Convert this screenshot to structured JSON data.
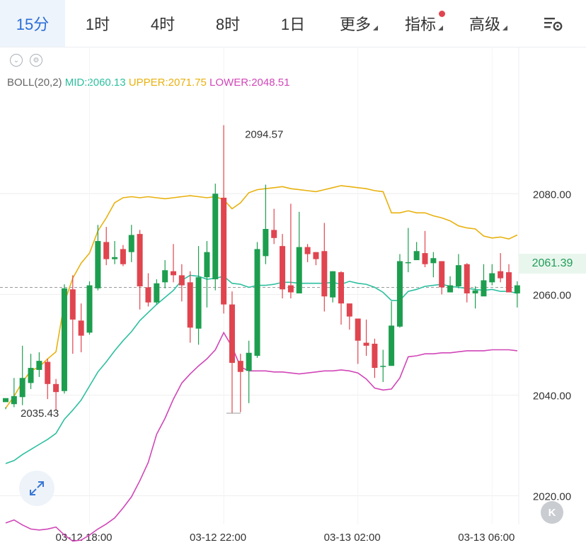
{
  "toolbar": {
    "tabs": [
      {
        "label": "15分",
        "active": true
      },
      {
        "label": "1时"
      },
      {
        "label": "4时"
      },
      {
        "label": "8时"
      },
      {
        "label": "1日"
      },
      {
        "label": "更多",
        "dropdown": true
      },
      {
        "label": "指标",
        "dropdown": true,
        "dot": true
      },
      {
        "label": "高级",
        "dropdown": true
      }
    ],
    "settings_icon": "chart-settings-icon"
  },
  "indicator": {
    "name": "BOLL(20,2)",
    "mid": "MID:2060.13",
    "upper": "UPPER:2071.75",
    "lower": "LOWER:2048.51",
    "colors": {
      "mid": "#2dbfa0",
      "upper": "#e8b10e",
      "lower": "#d146b8"
    }
  },
  "colors": {
    "up": "#1d9e4f",
    "down": "#e0454f",
    "grid": "#eeeeee"
  },
  "chart_data": {
    "type": "candlestick",
    "y_ticks": [
      "2080.00",
      "2060.00",
      "2040.00",
      "2020.00"
    ],
    "ylim": [
      2014.3,
      2105.8
    ],
    "x_ticks": [
      "03-12 18:00",
      "03-12 22:00",
      "03-13 02:00",
      "03-13 06:00"
    ],
    "max_label": "2094.57",
    "min_label": "2035.43",
    "last_price": "2061.39",
    "candles": [
      [
        2038.6,
        2039.4,
        2037.6,
        2037.2
      ],
      [
        2038.2,
        2039.8,
        2043.4,
        2037.6
      ],
      [
        2039.6,
        2043.4,
        2049.8,
        2038.0
      ],
      [
        2042.4,
        2045.4,
        2048.2,
        2041.2
      ],
      [
        2045.0,
        2046.8,
        2048.5,
        2043.6
      ],
      [
        2046.6,
        2042.2,
        2047.2,
        2039.2
      ],
      [
        2042.2,
        2040.6,
        2043.2,
        2037.0
      ],
      [
        2040.8,
        2061.2,
        2062.0,
        2040.3
      ],
      [
        2061.0,
        2055.0,
        2063.8,
        2048.2
      ],
      [
        2054.8,
        2051.8,
        2058.2,
        2048.5
      ],
      [
        2052.4,
        2061.8,
        2062.6,
        2052.0
      ],
      [
        2061.2,
        2070.6,
        2073.8,
        2060.8
      ],
      [
        2070.4,
        2067.0,
        2073.4,
        2065.8
      ],
      [
        2067.0,
        2067.4,
        2070.6,
        2066.0
      ],
      [
        2069.0,
        2066.0,
        2069.8,
        2065.6
      ],
      [
        2068.4,
        2071.8,
        2073.8,
        2066.4
      ],
      [
        2072.0,
        2061.6,
        2072.8,
        2057.0
      ],
      [
        2061.4,
        2058.4,
        2064.2,
        2057.6
      ],
      [
        2058.4,
        2062.2,
        2063.0,
        2058.0
      ],
      [
        2062.4,
        2064.8,
        2066.8,
        2061.2
      ],
      [
        2064.6,
        2063.8,
        2070.0,
        2062.4
      ],
      [
        2063.8,
        2061.8,
        2066.0,
        2058.6
      ],
      [
        2062.4,
        2053.4,
        2064.6,
        2050.4
      ],
      [
        2053.2,
        2063.4,
        2069.6,
        2050.0
      ],
      [
        2063.4,
        2068.4,
        2070.6,
        2057.4
      ],
      [
        2063.0,
        2080.0,
        2082.0,
        2060.8
      ],
      [
        2079.2,
        2058.0,
        2093.6,
        2056.2
      ],
      [
        2058.0,
        2046.4,
        2060.6,
        2036.4
      ],
      [
        2046.8,
        2044.6,
        2048.2,
        2036.6
      ],
      [
        2044.8,
        2048.4,
        2050.8,
        2038.4
      ],
      [
        2047.8,
        2069.0,
        2070.4,
        2047.4
      ],
      [
        2067.6,
        2073.0,
        2081.8,
        2066.0
      ],
      [
        2072.8,
        2071.2,
        2077.0,
        2070.0
      ],
      [
        2069.6,
        2061.0,
        2072.0,
        2059.2
      ],
      [
        2061.8,
        2060.4,
        2078.0,
        2059.2
      ],
      [
        2060.2,
        2069.4,
        2076.4,
        2060.6
      ],
      [
        2069.4,
        2068.0,
        2070.0,
        2066.4
      ],
      [
        2068.4,
        2067.0,
        2068.4,
        2065.8
      ],
      [
        2068.6,
        2059.6,
        2074.2,
        2056.6
      ],
      [
        2059.4,
        2064.6,
        2064.6,
        2058.4
      ],
      [
        2064.4,
        2058.2,
        2064.6,
        2054.0
      ],
      [
        2058.2,
        2055.6,
        2057.8,
        2053.0
      ],
      [
        2055.2,
        2050.8,
        2054.6,
        2046.2
      ],
      [
        2050.4,
        2049.8,
        2055.0,
        2047.8
      ],
      [
        2050.2,
        2045.4,
        2051.2,
        2043.4
      ],
      [
        2045.6,
        2045.8,
        2049.0,
        2042.6
      ],
      [
        2045.8,
        2053.8,
        2058.6,
        2045.8
      ],
      [
        2053.6,
        2066.6,
        2068.0,
        2053.4
      ],
      [
        2066.4,
        2066.4,
        2073.2,
        2064.4
      ],
      [
        2066.8,
        2068.6,
        2070.4,
        2067.4
      ],
      [
        2068.2,
        2066.0,
        2072.6,
        2065.4
      ],
      [
        2066.2,
        2067.2,
        2068.4,
        2063.4
      ],
      [
        2066.6,
        2061.4,
        2066.6,
        2060.0
      ],
      [
        2060.4,
        2061.8,
        2063.6,
        2060.4
      ],
      [
        2061.6,
        2065.8,
        2068.0,
        2061.2
      ],
      [
        2066.0,
        2060.2,
        2066.2,
        2058.4
      ],
      [
        2060.2,
        2060.8,
        2061.6,
        2057.2
      ],
      [
        2059.6,
        2062.8,
        2066.0,
        2059.8
      ],
      [
        2062.4,
        2064.2,
        2066.0,
        2061.8
      ],
      [
        2064.6,
        2063.2,
        2068.2,
        2062.4
      ],
      [
        2064.4,
        2060.4,
        2066.0,
        2060.6
      ],
      [
        2060.2,
        2061.8,
        2062.6,
        2057.4
      ]
    ],
    "upper": [
      2037.4,
      2039.8,
      2042.6,
      2044.8,
      2045.6,
      2047.2,
      2048.6,
      2058.4,
      2063.2,
      2066.2,
      2068.2,
      2072.6,
      2075.2,
      2078.2,
      2079.2,
      2079.4,
      2079.2,
      2079.4,
      2079.2,
      2079.0,
      2079.2,
      2079.4,
      2079.6,
      2079.4,
      2079.2,
      2079.4,
      2078.8,
      2077.0,
      2078.2,
      2080.2,
      2080.8,
      2081.0,
      2081.2,
      2081.4,
      2081.0,
      2080.8,
      2080.6,
      2080.4,
      2080.8,
      2081.2,
      2081.6,
      2081.4,
      2081.2,
      2081.0,
      2080.6,
      2080.4,
      2076.2,
      2076.2,
      2076.6,
      2076.2,
      2076.2,
      2075.6,
      2075.2,
      2074.6,
      2073.6,
      2073.2,
      2073.0,
      2071.6,
      2071.2,
      2071.4,
      2071.0,
      2071.8
    ],
    "mid": [
      2026.4,
      2027.0,
      2028.2,
      2029.2,
      2030.2,
      2031.2,
      2032.4,
      2035.2,
      2037.0,
      2039.0,
      2041.8,
      2044.6,
      2046.6,
      2048.8,
      2050.8,
      2052.6,
      2054.8,
      2056.4,
      2058.0,
      2059.4,
      2060.8,
      2062.8,
      2063.8,
      2063.6,
      2063.0,
      2063.2,
      2063.6,
      2062.2,
      2062.0,
      2061.4,
      2061.8,
      2061.8,
      2062.0,
      2062.4,
      2062.4,
      2062.2,
      2062.2,
      2062.2,
      2062.2,
      2062.4,
      2062.0,
      2062.6,
      2062.2,
      2062.0,
      2061.4,
      2060.4,
      2058.8,
      2058.8,
      2060.6,
      2061.0,
      2061.6,
      2061.8,
      2062.0,
      2061.6,
      2061.4,
      2061.2,
      2061.0,
      2060.8,
      2061.0,
      2060.6,
      2060.6,
      2060.2
    ],
    "lower": [
      2014.6,
      2015.2,
      2014.2,
      2013.4,
      2013.2,
      2013.4,
      2013.8,
      2012.2,
      2011.0,
      2011.2,
      2012.2,
      2013.4,
      2014.4,
      2015.6,
      2017.6,
      2019.8,
      2023.0,
      2026.6,
      2032.2,
      2035.4,
      2039.2,
      2042.4,
      2044.2,
      2045.8,
      2047.2,
      2049.0,
      2052.4,
      2049.6,
      2045.6,
      2044.8,
      2044.8,
      2044.8,
      2044.6,
      2044.6,
      2044.4,
      2044.2,
      2044.4,
      2044.6,
      2044.8,
      2044.8,
      2045.0,
      2044.8,
      2044.4,
      2043.2,
      2041.4,
      2041.0,
      2041.2,
      2043.4,
      2047.6,
      2047.8,
      2048.2,
      2048.2,
      2048.4,
      2048.4,
      2048.6,
      2048.8,
      2048.8,
      2048.8,
      2049.0,
      2049.0,
      2049.0,
      2048.8
    ]
  }
}
